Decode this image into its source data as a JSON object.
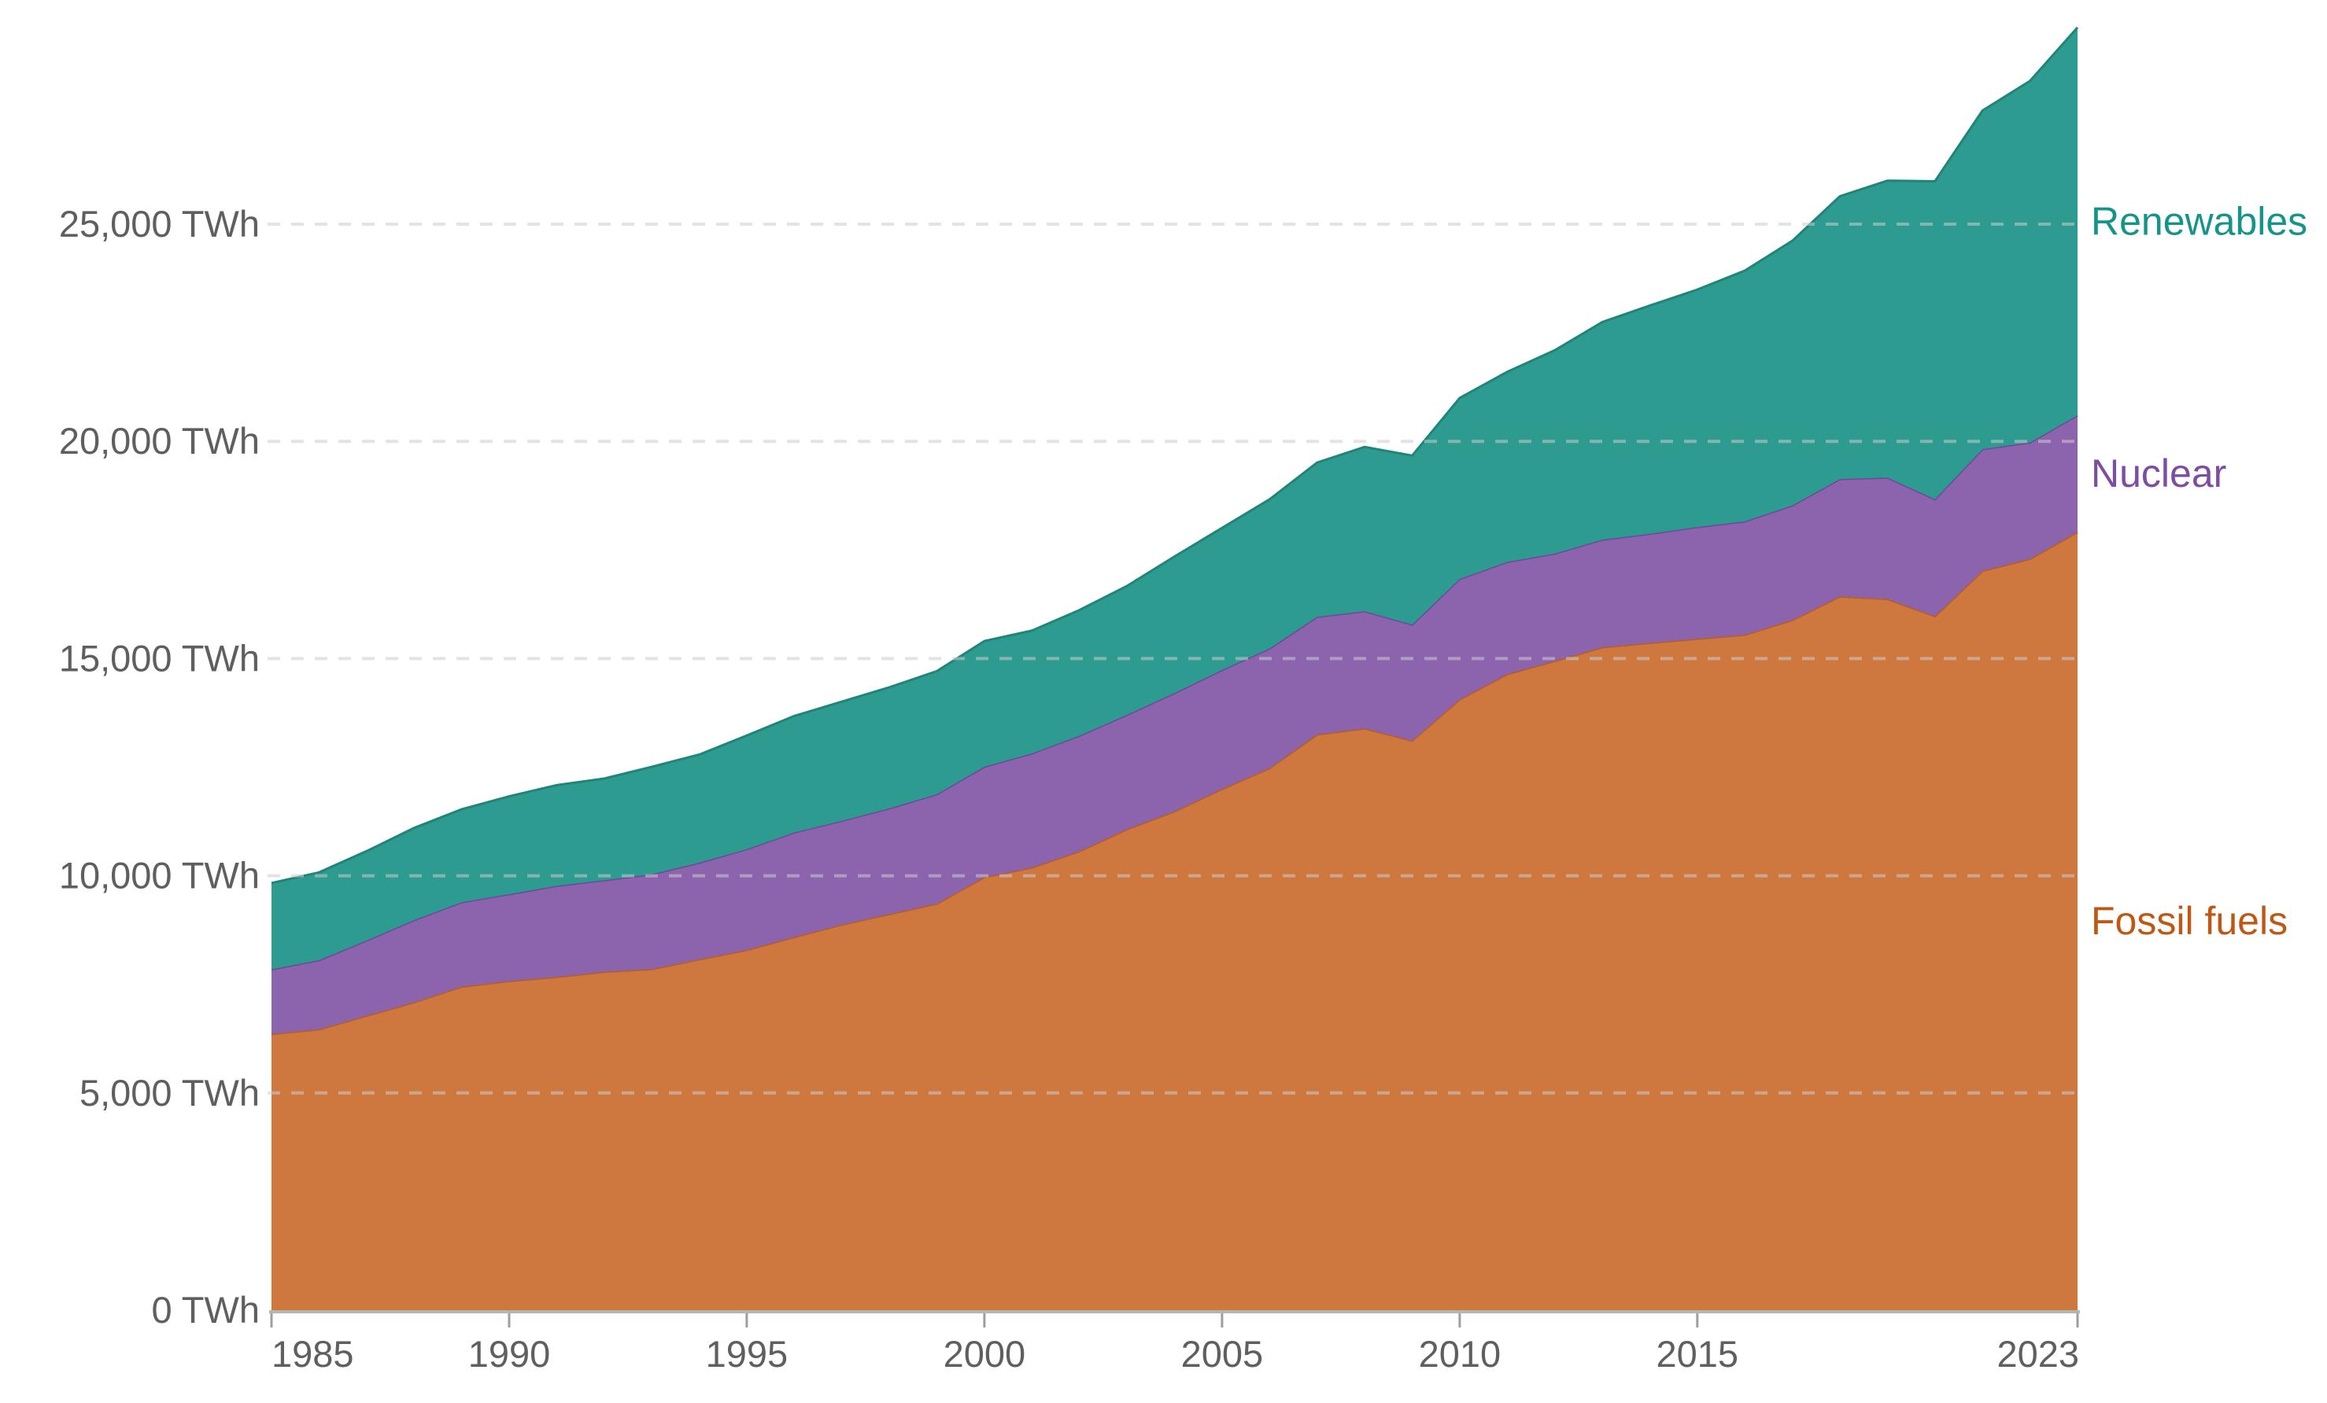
{
  "chart_data": {
    "type": "area",
    "stacked": true,
    "unit": "TWh",
    "x_label": "",
    "y_label": "",
    "grid": "dashed-horizontal",
    "legend_position": "right",
    "x": [
      1985,
      1986,
      1987,
      1988,
      1989,
      1990,
      1991,
      1992,
      1993,
      1994,
      1995,
      1996,
      1997,
      1998,
      1999,
      2000,
      2001,
      2002,
      2003,
      2004,
      2005,
      2006,
      2007,
      2008,
      2009,
      2010,
      2011,
      2012,
      2013,
      2014,
      2015,
      2016,
      2017,
      2018,
      2019,
      2020,
      2021,
      2022,
      2023
    ],
    "series": [
      {
        "name": "Fossil fuels",
        "fill_color": "#CE7840",
        "line_color": "#B55E24",
        "label_color": "#BE5915",
        "values": [
          6357,
          6464,
          6777,
          7088,
          7448,
          7576,
          7671,
          7790,
          7851,
          8077,
          8292,
          8590,
          8875,
          9118,
          9357,
          9969,
          10190,
          10565,
          11071,
          11485,
          11998,
          12479,
          13253,
          13392,
          13111,
          14063,
          14641,
          14946,
          15260,
          15360,
          15456,
          15547,
          15888,
          16431,
          16372,
          15976,
          17021,
          17296,
          17914
        ]
      },
      {
        "name": "Nuclear",
        "fill_color": "#8B64AD",
        "line_color": "#6F4798",
        "label_color": "#7D4CA4",
        "values": [
          1489,
          1594,
          1734,
          1893,
          1944,
          2001,
          2097,
          2108,
          2186,
          2226,
          2322,
          2407,
          2390,
          2433,
          2520,
          2541,
          2626,
          2660,
          2635,
          2723,
          2739,
          2755,
          2707,
          2700,
          2673,
          2771,
          2583,
          2470,
          2478,
          2512,
          2571,
          2612,
          2639,
          2701,
          2796,
          2693,
          2800,
          2679,
          2686
        ]
      },
      {
        "name": "Renewables",
        "fill_color": "#2E9B91",
        "line_color": "#1F8579",
        "label_color": "#159488",
        "values": [
          1988,
          2020,
          2056,
          2119,
          2137,
          2252,
          2319,
          2340,
          2470,
          2486,
          2614,
          2682,
          2743,
          2788,
          2834,
          2893,
          2826,
          2892,
          2964,
          3141,
          3270,
          3432,
          3551,
          3780,
          3889,
          4163,
          4377,
          4680,
          5009,
          5252,
          5465,
          5771,
          6089,
          6509,
          6833,
          7317,
          7793,
          8321,
          8928
        ]
      }
    ],
    "y_axis": {
      "range": [
        0,
        30000
      ],
      "ticks": [
        {
          "value": 0,
          "label": "0 TWh"
        },
        {
          "value": 5000,
          "label": "5,000 TWh"
        },
        {
          "value": 10000,
          "label": "10,000 TWh"
        },
        {
          "value": 15000,
          "label": "15,000 TWh"
        },
        {
          "value": 20000,
          "label": "20,000 TWh"
        },
        {
          "value": 25000,
          "label": "25,000 TWh"
        }
      ]
    },
    "x_axis": {
      "range": [
        1985,
        2023
      ],
      "ticks": [
        {
          "value": 1985,
          "label": "1985"
        },
        {
          "value": 1990,
          "label": "1990"
        },
        {
          "value": 1995,
          "label": "1995"
        },
        {
          "value": 2000,
          "label": "2000"
        },
        {
          "value": 2005,
          "label": "2005"
        },
        {
          "value": 2010,
          "label": "2010"
        },
        {
          "value": 2015,
          "label": "2015"
        },
        {
          "value": 2023,
          "label": "2023"
        }
      ]
    }
  },
  "legend": {
    "renewables": "Renewables",
    "nuclear": "Nuclear",
    "fossil": "Fossil fuels"
  },
  "colors": {
    "gridline": "#cccccc",
    "axis_line": "#b5b5b5",
    "tick_mark": "#9e9e9e",
    "axis_text": "#5f5f5f",
    "background": "#ffffff"
  }
}
